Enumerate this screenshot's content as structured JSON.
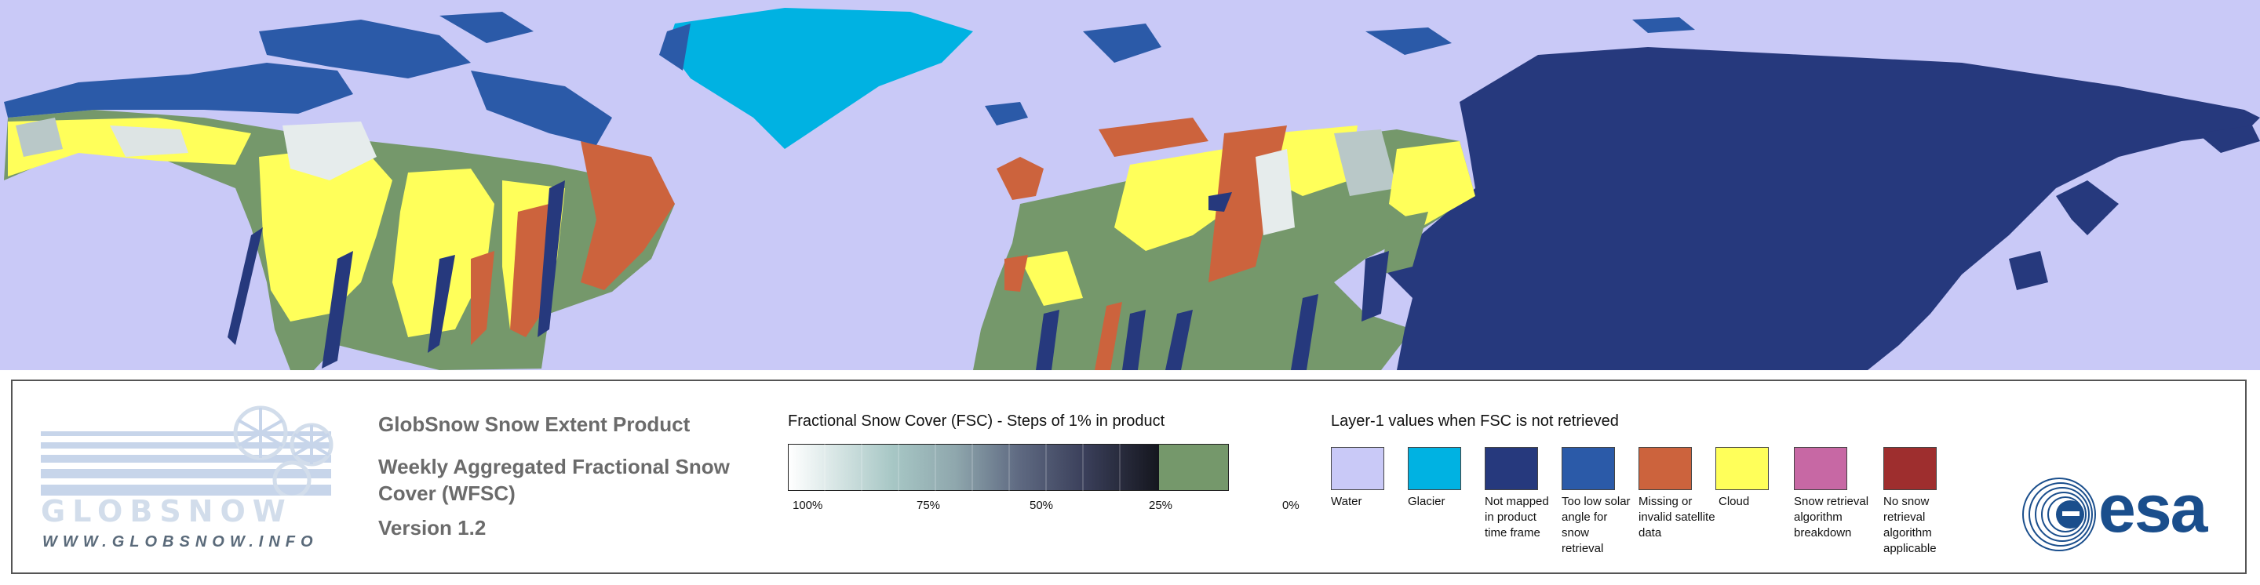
{
  "colors": {
    "water": "#c9c9f7",
    "glacier": "#00b2e2",
    "not_mapped": "#26397d",
    "low_solar": "#2b5aa8",
    "missing": "#cc633d",
    "cloud": "#ffff5a",
    "breakdown": "#c768a4",
    "no_retrieval": "#9e2e2e",
    "snow_free": "#75986b",
    "esa_blue": "#1a4e8c"
  },
  "logo": {
    "name": "GLOBSNOW",
    "url": "WWW.GLOBSNOW.INFO"
  },
  "product": {
    "title": "GlobSnow Snow Extent Product",
    "subtitle": "Weekly Aggregated Fractional Snow Cover (WFSC)",
    "version": "Version 1.2"
  },
  "fsc_scale": {
    "title": "Fractional Snow Cover (FSC) - Steps of 1% in product",
    "ticks": [
      "100%",
      "75%",
      "50%",
      "25%",
      "0%"
    ]
  },
  "layer1": {
    "title": "Layer-1 values when FSC is not retrieved",
    "items": [
      {
        "label": "Water",
        "color": "#c9c9f7"
      },
      {
        "label": "Glacier",
        "color": "#00b2e2"
      },
      {
        "label": "Not mapped in product time frame",
        "color": "#26397d"
      },
      {
        "label": "Too low solar angle for snow retrieval",
        "color": "#2b5aa8"
      },
      {
        "label": "Missing or invalid satellite data",
        "color": "#cc633d"
      },
      {
        "label": "Cloud",
        "color": "#ffff5a"
      },
      {
        "label": "Snow retrieval algorithm breakdown",
        "color": "#c768a4"
      },
      {
        "label": "No snow retrieval algorithm applicable",
        "color": "#9e2e2e"
      }
    ]
  },
  "agency_logo": "esa"
}
